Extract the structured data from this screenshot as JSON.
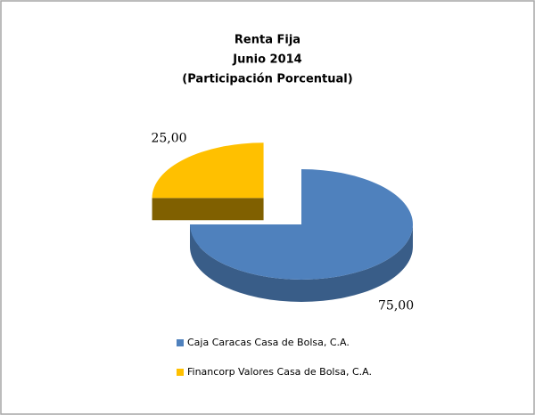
{
  "chart_data": {
    "type": "pie",
    "title": [
      "Renta Fija",
      "Junio 2014",
      "(Participación Porcentual)"
    ],
    "categories": [
      "Caja Caracas Casa de Bolsa, C.A.",
      "Financorp Valores Casa de Bolsa, C.A."
    ],
    "values": [
      75,
      25
    ],
    "value_labels": [
      "75,00",
      "25,00"
    ],
    "colors": [
      "#4f81bd",
      "#ffc000"
    ],
    "explode": [
      false,
      true
    ],
    "legend": "bottom"
  }
}
